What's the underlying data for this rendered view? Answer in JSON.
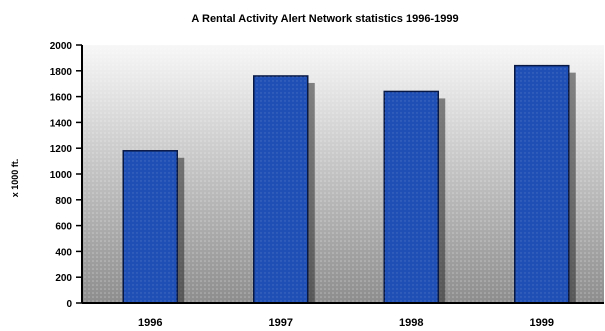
{
  "chart_data": {
    "type": "bar",
    "title": "A Rental Activity Alert Network statistics 1996-1999",
    "ylabel": "x 1000 ft.",
    "categories": [
      "1996",
      "1997",
      "1998",
      "1999"
    ],
    "values": [
      1180,
      1760,
      1640,
      1840
    ],
    "ylim": [
      0,
      2000
    ],
    "yticks": [
      0,
      200,
      400,
      600,
      800,
      1000,
      1200,
      1400,
      1600,
      1800,
      2000
    ],
    "grid": false,
    "legend": "none",
    "colors": {
      "bar": "#1f4fb5",
      "bar_stroke": "#081845",
      "shadow": "#2a2a2a",
      "plot_top": "#f7f7f7",
      "plot_bottom": "#8d8d8d",
      "axis": "#000000",
      "text": "#000000"
    }
  }
}
